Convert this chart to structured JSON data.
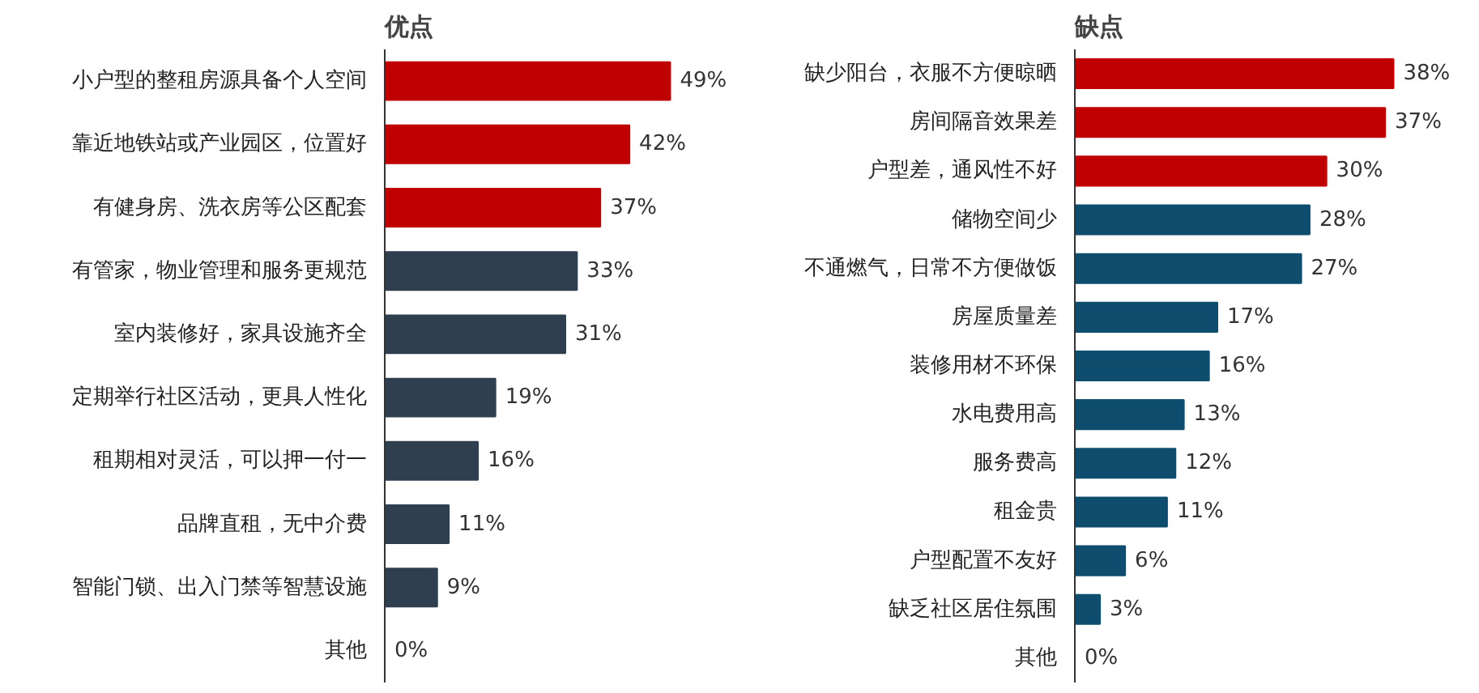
{
  "chart_data": [
    {
      "type": "bar",
      "orientation": "horizontal",
      "title": "优点",
      "categories": [
        "小户型的整租房源具备个人空间",
        "靠近地铁站或产业园区，位置好",
        "有健身房、洗衣房等公区配套",
        "有管家，物业管理和服务更规范",
        "室内装修好，家具设施齐全",
        "定期举行社区活动，更具人性化",
        "租期相对灵活，可以押一付一",
        "品牌直租，无中介费",
        "智能门锁、出入门禁等智慧设施",
        "其他"
      ],
      "values": [
        49,
        42,
        37,
        33,
        31,
        19,
        16,
        11,
        9,
        0
      ],
      "colors": [
        "#c00000",
        "#c00000",
        "#c00000",
        "#2f3f4f",
        "#2f3f4f",
        "#2f3f4f",
        "#2f3f4f",
        "#2f3f4f",
        "#2f3f4f",
        "#2f3f4f"
      ],
      "value_labels": [
        "49%",
        "42%",
        "37%",
        "33%",
        "31%",
        "19%",
        "16%",
        "11%",
        "9%",
        "0%"
      ]
    },
    {
      "type": "bar",
      "orientation": "horizontal",
      "title": "缺点",
      "categories": [
        "缺少阳台，衣服不方便晾晒",
        "房间隔音效果差",
        "户型差，通风性不好",
        "储物空间少",
        "不通燃气，日常不方便做饭",
        "房屋质量差",
        "装修用材不环保",
        "水电费用高",
        "服务费高",
        "租金贵",
        "户型配置不友好",
        "缺乏社区居住氛围",
        "其他"
      ],
      "values": [
        38,
        37,
        30,
        28,
        27,
        17,
        16,
        13,
        12,
        11,
        6,
        3,
        0
      ],
      "colors": [
        "#c00000",
        "#c00000",
        "#c00000",
        "#0e4d6e",
        "#0e4d6e",
        "#0e4d6e",
        "#0e4d6e",
        "#0e4d6e",
        "#0e4d6e",
        "#0e4d6e",
        "#0e4d6e",
        "#0e4d6e",
        "#0e4d6e"
      ],
      "value_labels": [
        "38%",
        "37%",
        "30%",
        "28%",
        "27%",
        "17%",
        "16%",
        "13%",
        "12%",
        "11%",
        "6%",
        "3%",
        "0%"
      ]
    }
  ]
}
